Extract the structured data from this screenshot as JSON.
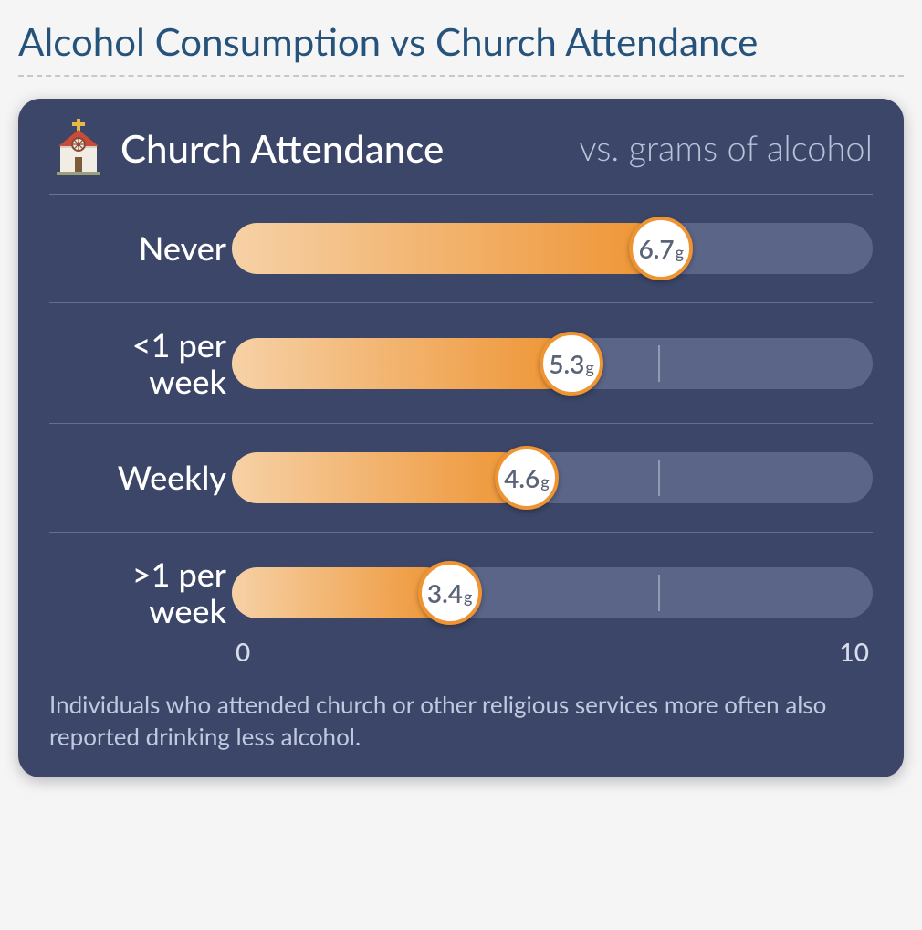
{
  "page": {
    "title": "Alcohol Consumption vs Church Attendance",
    "title_color": "#26537b",
    "background": "#f5f5f5"
  },
  "card": {
    "background": "#3b4668",
    "header": {
      "title": "Church Attendance",
      "subtitle": "vs. grams of alcohol",
      "subtitle_color": "#b9c2d8",
      "icon": "church-icon"
    },
    "chart": {
      "type": "bar",
      "xlim": [
        0,
        10
      ],
      "track_color": "#5b6588",
      "tick_color": "rgba(255,255,255,0.35)",
      "ticks": [
        3.33,
        6.67
      ],
      "bar_gradient_start": "#f6d1a6",
      "bar_gradient_end": "#ee9433",
      "marker_border": "#ee9433",
      "marker_text_color": "#5a6378",
      "unit": "g",
      "rows": [
        {
          "label": "Never",
          "value": 6.7
        },
        {
          "label": "<1 per week",
          "value": 5.3
        },
        {
          "label": "Weekly",
          "value": 4.6
        },
        {
          "label": ">1 per week",
          "value": 3.4
        }
      ],
      "axis": {
        "min_label": "0",
        "max_label": "10",
        "label_color": "#d7dced"
      }
    },
    "caption": {
      "text": "Individuals who attended church or other religious services more often also reported drinking less alcohol.",
      "color": "#c1c9df"
    }
  }
}
